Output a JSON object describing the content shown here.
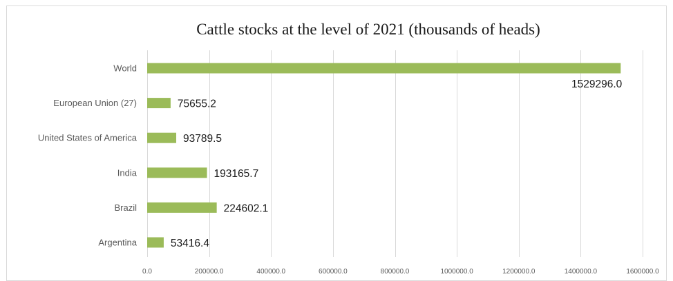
{
  "chart_data": {
    "type": "bar",
    "orientation": "horizontal",
    "title": "Cattle stocks at the level  of 2021  (thousands of heads)",
    "categories": [
      "World",
      "European Union (27)",
      "United States of America",
      "India",
      "Brazil",
      "Argentina"
    ],
    "values": [
      1529296.0,
      75655.2,
      93789.5,
      193165.7,
      224602.1,
      53416.4
    ],
    "data_labels": [
      "1529296.0",
      "75655.2",
      "93789.5",
      "193165.7",
      "224602.1",
      "53416.4"
    ],
    "x_ticks": [
      0,
      200000,
      400000,
      600000,
      800000,
      1000000,
      1200000,
      1400000,
      1600000
    ],
    "x_tick_labels": [
      "0.0",
      "200000.0",
      "400000.0",
      "600000.0",
      "800000.0",
      "1000000.0",
      "1200000.0",
      "1400000.0",
      "1600000.0"
    ],
    "xlim": [
      0,
      1600000
    ],
    "xlabel": "",
    "ylabel": "",
    "grid": "vertical",
    "legend": "none",
    "bar_color": "#9bbb59"
  }
}
